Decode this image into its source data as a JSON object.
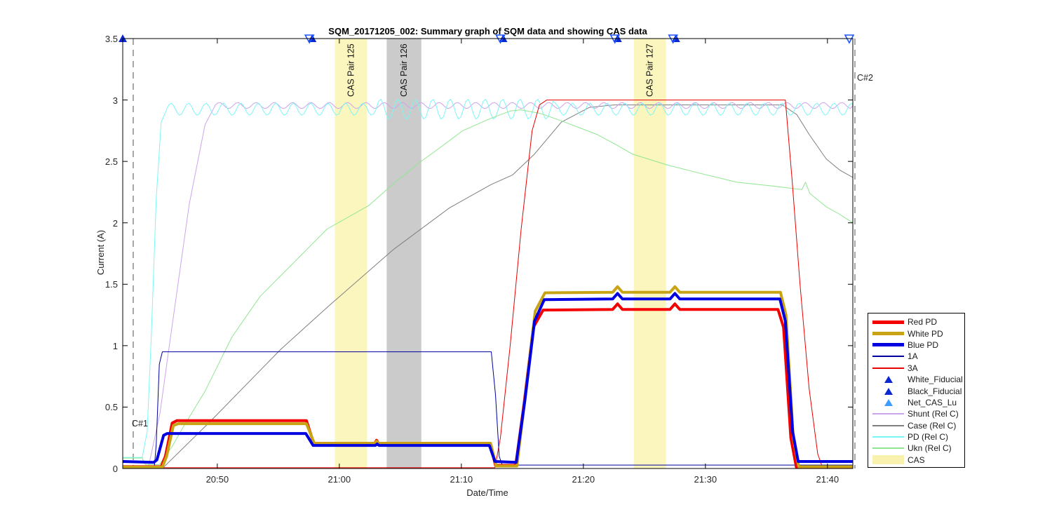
{
  "title": "SQM_20171205_002: Summary graph of SQM data and showing CAS data",
  "xlabel": "Date/Time",
  "ylabel": "Current (A)",
  "annotations": {
    "c1": {
      "label": "C#1",
      "t": 43.11
    },
    "c2": {
      "label": "C#2",
      "t": 102.25
    }
  },
  "chart_data": {
    "type": "line",
    "title": "SQM_20171205_002: Summary graph of SQM data and showing CAS data",
    "xlabel": "Date/Time",
    "ylabel": "Current (A)",
    "t_range": [
      42.25,
      102.08
    ],
    "ylim": [
      0,
      3.5
    ],
    "x_ticks": [
      {
        "t": 50,
        "label": "20:50"
      },
      {
        "t": 60,
        "label": "21:00"
      },
      {
        "t": 70,
        "label": "21:10"
      },
      {
        "t": 80,
        "label": "21:20"
      },
      {
        "t": 90,
        "label": "21:30"
      },
      {
        "t": 100,
        "label": "21:40"
      }
    ],
    "y_ticks": [
      {
        "v": 0,
        "label": "0"
      },
      {
        "v": 0.5,
        "label": "0.5"
      },
      {
        "v": 1,
        "label": "1"
      },
      {
        "v": 1.5,
        "label": "1.5"
      },
      {
        "v": 2,
        "label": "2"
      },
      {
        "v": 2.5,
        "label": "2.5"
      },
      {
        "v": 3,
        "label": "3"
      },
      {
        "v": 3.5,
        "label": "3.5"
      }
    ],
    "bands": [
      {
        "label": "CAS Pair 125",
        "t_from": 59.63,
        "t_to": 62.27,
        "color": "#FAF6BE"
      },
      {
        "label": "CAS Pair 126",
        "t_from": 63.88,
        "t_to": 66.72,
        "color": "#CBCBCB"
      },
      {
        "label": "CAS Pair 127",
        "t_from": 84.13,
        "t_to": 86.78,
        "color": "#FAF6BE"
      }
    ],
    "markers": {
      "filled_color": "#0A28D2",
      "open_color": "#1E55FF",
      "y_value": 3.5,
      "points": [
        {
          "t": 42.25,
          "type": "filled"
        },
        {
          "t": 57.78,
          "type": "both"
        },
        {
          "t": 73.43,
          "type": "both"
        },
        {
          "t": 82.81,
          "type": "both"
        },
        {
          "t": 87.58,
          "type": "both"
        },
        {
          "t": 102.02,
          "type": "open"
        }
      ]
    },
    "series": [
      {
        "name": "Case (Rel C)",
        "color": "#7F7F7F",
        "width": 1,
        "points": [
          [
            42.25,
            0.01
          ],
          [
            45.6,
            0.01
          ],
          [
            49.4,
            0.38
          ],
          [
            55.2,
            0.97
          ],
          [
            59.1,
            1.32
          ],
          [
            64.4,
            1.78
          ],
          [
            69.0,
            2.12
          ],
          [
            72.4,
            2.31
          ],
          [
            74.2,
            2.39
          ],
          [
            76.0,
            2.56
          ],
          [
            78.2,
            2.82
          ],
          [
            80.5,
            2.94
          ],
          [
            82.5,
            2.96
          ],
          [
            96.3,
            2.96
          ],
          [
            97.5,
            2.88
          ],
          [
            98.5,
            2.72
          ],
          [
            99.9,
            2.52
          ],
          [
            101.0,
            2.43
          ],
          [
            102.08,
            2.37
          ]
        ]
      },
      {
        "name": "Shunt (Rel C)",
        "color": "#CBA5EC",
        "width": 1,
        "points": [
          [
            42.25,
            0.006
          ],
          [
            44.35,
            0.006
          ],
          [
            45.3,
            0.45
          ],
          [
            46.0,
            0.95
          ],
          [
            47.7,
            2.15
          ],
          [
            49.0,
            2.8
          ],
          [
            49.8,
            2.95
          ]
        ],
        "osc": {
          "from": 49.8,
          "to": 102.08,
          "mean": 2.955,
          "amp": 0.025,
          "period": 1.5
        }
      },
      {
        "name": "PD (Rel C)",
        "color": "#7BF6F6",
        "width": 1,
        "points": [
          [
            42.25,
            0.09
          ],
          [
            43.85,
            0.09
          ],
          [
            44.25,
            0.3
          ],
          [
            44.6,
            1.1
          ],
          [
            45.0,
            2.2
          ],
          [
            45.4,
            2.82
          ],
          [
            45.85,
            2.92
          ]
        ],
        "osc": {
          "from": 45.85,
          "to": 102.08,
          "mean": 2.925,
          "amp": 0.05,
          "period": 1.43,
          "big": {
            "from": 63.2,
            "to": 77.6,
            "amp": 0.082
          }
        }
      },
      {
        "name": "Ukn (Rel C)",
        "color": "#90E690",
        "width": 1,
        "points": [
          [
            42.25,
            0.085
          ],
          [
            43.85,
            0.085
          ],
          [
            44.1,
            0.032
          ],
          [
            45.25,
            0.032
          ],
          [
            46.3,
            0.18
          ],
          [
            47.1,
            0.32
          ],
          [
            49.0,
            0.63
          ],
          [
            51.2,
            1.07
          ],
          [
            53.5,
            1.4
          ],
          [
            56.3,
            1.68
          ],
          [
            59.0,
            1.95
          ],
          [
            62.4,
            2.14
          ],
          [
            64.8,
            2.35
          ],
          [
            66.7,
            2.5
          ],
          [
            68.5,
            2.63
          ],
          [
            70.1,
            2.75
          ],
          [
            72.4,
            2.85
          ],
          [
            74.0,
            2.91
          ],
          [
            74.9,
            2.92
          ],
          [
            76.5,
            2.89
          ],
          [
            78.2,
            2.83
          ],
          [
            81.1,
            2.72
          ],
          [
            82.8,
            2.63
          ],
          [
            84.0,
            2.56
          ],
          [
            86.9,
            2.47
          ],
          [
            89.7,
            2.4
          ],
          [
            92.6,
            2.33
          ],
          [
            95.5,
            2.3
          ],
          [
            97.9,
            2.27
          ],
          [
            98.2,
            2.33
          ],
          [
            98.55,
            2.24
          ],
          [
            99.9,
            2.13
          ],
          [
            101.0,
            2.07
          ],
          [
            102.08,
            2.0
          ]
        ]
      },
      {
        "name": "3A",
        "color": "#E80000",
        "width": 1,
        "points": [
          [
            42.25,
            0.006
          ],
          [
            72.75,
            0.006
          ],
          [
            73.2,
            0.25
          ],
          [
            74.0,
            1.0
          ],
          [
            74.9,
            1.95
          ],
          [
            75.8,
            2.75
          ],
          [
            76.4,
            2.96
          ],
          [
            77.0,
            3.0
          ],
          [
            96.55,
            3.0
          ],
          [
            97.1,
            2.35
          ],
          [
            97.75,
            1.5
          ],
          [
            98.5,
            0.65
          ],
          [
            99.2,
            0.12
          ],
          [
            99.55,
            0.02
          ],
          [
            102.08,
            0.02
          ]
        ]
      },
      {
        "name": "1A",
        "color": "#00009E",
        "width": 1,
        "points": [
          [
            42.25,
            0.02
          ],
          [
            44.85,
            0.02
          ],
          [
            45.0,
            0.2
          ],
          [
            45.25,
            0.85
          ],
          [
            45.5,
            0.95
          ],
          [
            72.45,
            0.95
          ],
          [
            72.8,
            0.6
          ],
          [
            73.1,
            0.1
          ],
          [
            73.35,
            0.028
          ],
          [
            102.08,
            0.028
          ]
        ]
      },
      {
        "name": "Red PD",
        "color": "#F40000",
        "width": 4,
        "points": [
          [
            42.25,
            0.015
          ],
          [
            45.4,
            0.015
          ],
          [
            45.75,
            0.1
          ],
          [
            46.3,
            0.37
          ],
          [
            46.7,
            0.39
          ],
          [
            57.3,
            0.39
          ],
          [
            57.9,
            0.205
          ],
          [
            62.9,
            0.205
          ],
          [
            63.05,
            0.23
          ],
          [
            63.2,
            0.205
          ],
          [
            72.35,
            0.205
          ],
          [
            72.8,
            0.025
          ],
          [
            74.45,
            0.025
          ],
          [
            75.1,
            0.5
          ],
          [
            75.9,
            1.15
          ],
          [
            76.7,
            1.29
          ],
          [
            82.4,
            1.295
          ],
          [
            82.8,
            1.34
          ],
          [
            83.2,
            1.295
          ],
          [
            87.1,
            1.295
          ],
          [
            87.5,
            1.34
          ],
          [
            87.9,
            1.295
          ],
          [
            95.95,
            1.295
          ],
          [
            96.4,
            1.15
          ],
          [
            97.0,
            0.25
          ],
          [
            97.45,
            0.012
          ],
          [
            102.08,
            0.012
          ]
        ]
      },
      {
        "name": "White PD",
        "color": "#C8A415",
        "width": 4,
        "points": [
          [
            42.25,
            0.012
          ],
          [
            45.5,
            0.012
          ],
          [
            45.85,
            0.1
          ],
          [
            46.4,
            0.35
          ],
          [
            46.8,
            0.365
          ],
          [
            57.3,
            0.365
          ],
          [
            57.95,
            0.205
          ],
          [
            62.9,
            0.205
          ],
          [
            63.05,
            0.222
          ],
          [
            63.2,
            0.205
          ],
          [
            72.4,
            0.205
          ],
          [
            72.85,
            0.02
          ],
          [
            74.55,
            0.02
          ],
          [
            75.25,
            0.6
          ],
          [
            76.05,
            1.28
          ],
          [
            76.85,
            1.43
          ],
          [
            82.4,
            1.435
          ],
          [
            82.8,
            1.48
          ],
          [
            83.2,
            1.435
          ],
          [
            87.1,
            1.435
          ],
          [
            87.5,
            1.48
          ],
          [
            87.9,
            1.435
          ],
          [
            96.15,
            1.435
          ],
          [
            96.6,
            1.25
          ],
          [
            97.2,
            0.25
          ],
          [
            97.65,
            0.015
          ],
          [
            102.08,
            0.015
          ]
        ]
      },
      {
        "name": "Blue PD",
        "color": "#0000E0",
        "width": 4,
        "points": [
          [
            42.25,
            0.057
          ],
          [
            44.8,
            0.05
          ],
          [
            45.05,
            0.07
          ],
          [
            45.6,
            0.27
          ],
          [
            45.9,
            0.285
          ],
          [
            57.25,
            0.285
          ],
          [
            57.85,
            0.188
          ],
          [
            62.95,
            0.188
          ],
          [
            63.1,
            0.2
          ],
          [
            63.25,
            0.188
          ],
          [
            72.3,
            0.188
          ],
          [
            72.75,
            0.057
          ],
          [
            74.5,
            0.05
          ],
          [
            75.2,
            0.55
          ],
          [
            76.0,
            1.2
          ],
          [
            76.8,
            1.375
          ],
          [
            82.4,
            1.38
          ],
          [
            82.8,
            1.425
          ],
          [
            83.2,
            1.38
          ],
          [
            87.1,
            1.38
          ],
          [
            87.5,
            1.425
          ],
          [
            87.9,
            1.38
          ],
          [
            96.1,
            1.38
          ],
          [
            96.55,
            1.2
          ],
          [
            97.15,
            0.3
          ],
          [
            97.6,
            0.057
          ],
          [
            102.08,
            0.057
          ]
        ]
      }
    ],
    "legend": [
      {
        "label": "Red PD",
        "type": "thick",
        "color": "#F40000"
      },
      {
        "label": "White PD",
        "type": "thick",
        "color": "#C8A415"
      },
      {
        "label": "Blue PD",
        "type": "thick",
        "color": "#0000E0"
      },
      {
        "label": "1A",
        "type": "thin",
        "color": "#00009E"
      },
      {
        "label": "3A",
        "type": "thin",
        "color": "#E80000"
      },
      {
        "label": "White_Fiducial",
        "type": "triangle",
        "color": "#0A28D2"
      },
      {
        "label": "Black_Fiducial",
        "type": "triangle",
        "color": "#0A28D2"
      },
      {
        "label": "Net_CAS_Lu",
        "type": "triangle",
        "color": "#3E9BFF"
      },
      {
        "label": "Shunt (Rel C)",
        "type": "thin",
        "color": "#CBA5EC"
      },
      {
        "label": "Case (Rel C)",
        "type": "thin",
        "color": "#7F7F7F"
      },
      {
        "label": "PD (Rel C)",
        "type": "thin",
        "color": "#7BF6F6"
      },
      {
        "label": "Ukn (Rel C)",
        "type": "thin",
        "color": "#90E690"
      },
      {
        "label": "CAS",
        "type": "patch",
        "color": "#F8F2AE"
      }
    ]
  }
}
